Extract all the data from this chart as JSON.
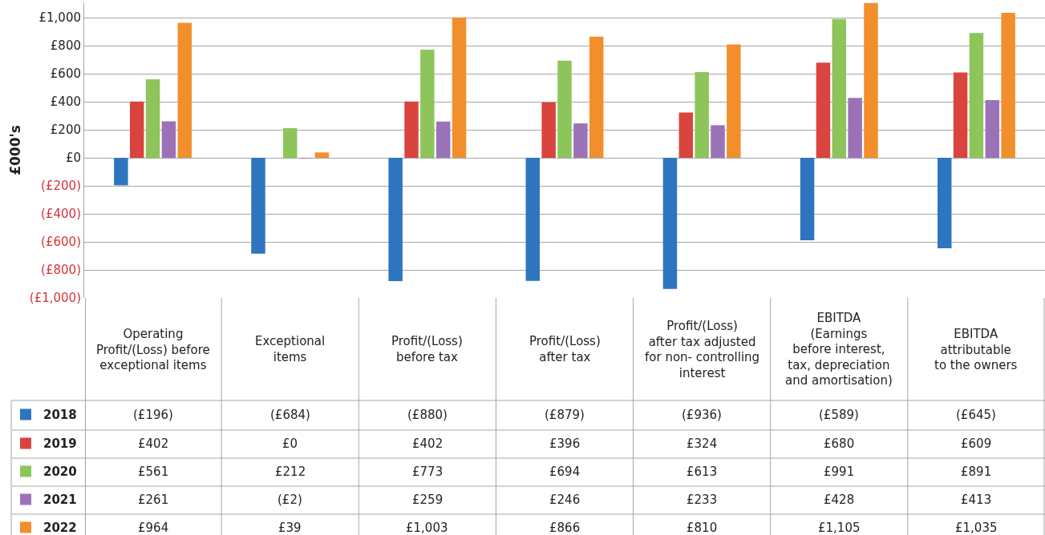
{
  "chart_data": {
    "type": "bar",
    "ylabel": "£000's",
    "categories": [
      "Operating\nProfit/(Loss) before\nexceptional items",
      "Exceptional\nitems",
      "Profit/(Loss)\nbefore tax",
      "Profit/(Loss)\nafter tax",
      "Profit/(Loss)\nafter tax adjusted\nfor non- controlling\ninterest",
      "EBITDA\n(Earnings\nbefore interest,\ntax, depreciation\nand amortisation)",
      "EBITDA\nattributable\nto the owners"
    ],
    "series": [
      {
        "name": "2018",
        "color": "#2e75c0",
        "values": [
          -196,
          -684,
          -880,
          -879,
          -936,
          -589,
          -645
        ],
        "value_labels": [
          "(£196)",
          "(£684)",
          "(£880)",
          "(£879)",
          "(£936)",
          "(£589)",
          "(£645)"
        ]
      },
      {
        "name": "2019",
        "color": "#d9443f",
        "values": [
          402,
          0,
          402,
          396,
          324,
          680,
          609
        ],
        "value_labels": [
          "£402",
          "£0",
          "£402",
          "£396",
          "£324",
          "£680",
          "£609"
        ]
      },
      {
        "name": "2020",
        "color": "#8dc55a",
        "values": [
          561,
          212,
          773,
          694,
          613,
          991,
          891
        ],
        "value_labels": [
          "£561",
          "£212",
          "£773",
          "£694",
          "£613",
          "£991",
          "£891"
        ]
      },
      {
        "name": "2021",
        "color": "#9b72b8",
        "values": [
          261,
          -2,
          259,
          246,
          233,
          428,
          413
        ],
        "value_labels": [
          "£261",
          "(£2)",
          "£259",
          "£246",
          "£233",
          "£428",
          "£413"
        ]
      },
      {
        "name": "2022",
        "color": "#f28f2c",
        "values": [
          964,
          39,
          1003,
          866,
          810,
          1105,
          1035
        ],
        "value_labels": [
          "£964",
          "£39",
          "£1,003",
          "£866",
          "£810",
          "£1,105",
          "£1,035"
        ]
      }
    ],
    "ylim": [
      -1000,
      1110
    ],
    "yticks": [
      {
        "value": -1000,
        "label": "(£1,000)"
      },
      {
        "value": -800,
        "label": "(£800)"
      },
      {
        "value": -600,
        "label": "(£600)"
      },
      {
        "value": -400,
        "label": "(£400)"
      },
      {
        "value": -200,
        "label": "(£200)"
      },
      {
        "value": 0,
        "label": "£0"
      },
      {
        "value": 200,
        "label": "£200"
      },
      {
        "value": 400,
        "label": "£400"
      },
      {
        "value": 600,
        "label": "£600"
      },
      {
        "value": 800,
        "label": "£800"
      },
      {
        "value": 1000,
        "label": "£1,000"
      }
    ],
    "grid": "y",
    "legend": "bottom left"
  }
}
